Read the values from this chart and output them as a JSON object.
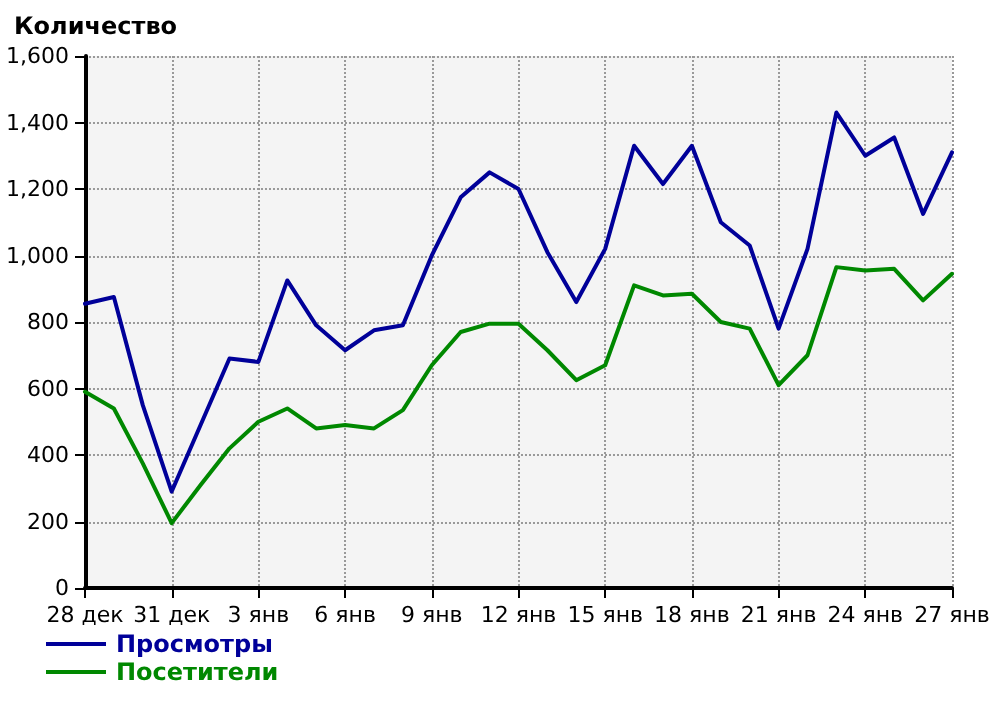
{
  "chart_data": {
    "type": "line",
    "title": "Количество",
    "categories": [
      "28 дек",
      null,
      null,
      "31 дек",
      null,
      null,
      "3 янв",
      null,
      null,
      "6 янв",
      null,
      null,
      "9 янв",
      null,
      null,
      "12 янв",
      null,
      null,
      "15 янв",
      null,
      null,
      "18 янв",
      null,
      null,
      "21 янв",
      null,
      null,
      "24 янв",
      null,
      null,
      "27 янв"
    ],
    "series": [
      {
        "name": "Просмотры",
        "color": "#000099",
        "values": [
          855,
          875,
          550,
          290,
          490,
          690,
          680,
          925,
          790,
          715,
          775,
          790,
          1000,
          1175,
          1250,
          1200,
          1010,
          860,
          1020,
          1330,
          1215,
          1330,
          1100,
          1030,
          780,
          1020,
          1430,
          1300,
          1355,
          1125,
          1310
        ]
      },
      {
        "name": "Посетители",
        "color": "#008800",
        "values": [
          590,
          540,
          375,
          195,
          310,
          420,
          500,
          540,
          480,
          490,
          480,
          535,
          670,
          770,
          795,
          795,
          715,
          625,
          670,
          910,
          880,
          885,
          800,
          780,
          610,
          700,
          965,
          955,
          960,
          865,
          945
        ]
      }
    ],
    "ylim": [
      0,
      1600
    ],
    "yticks": [
      0,
      200,
      400,
      600,
      800,
      {
        "value": 1000,
        "label": "1,000"
      },
      {
        "value": 1200,
        "label": "1,200"
      },
      {
        "value": 1400,
        "label": "1,400"
      },
      {
        "value": 1600,
        "label": "1,600"
      }
    ],
    "grid": true,
    "legend": "bottom left",
    "marker": "none",
    "line_style": "solid"
  }
}
